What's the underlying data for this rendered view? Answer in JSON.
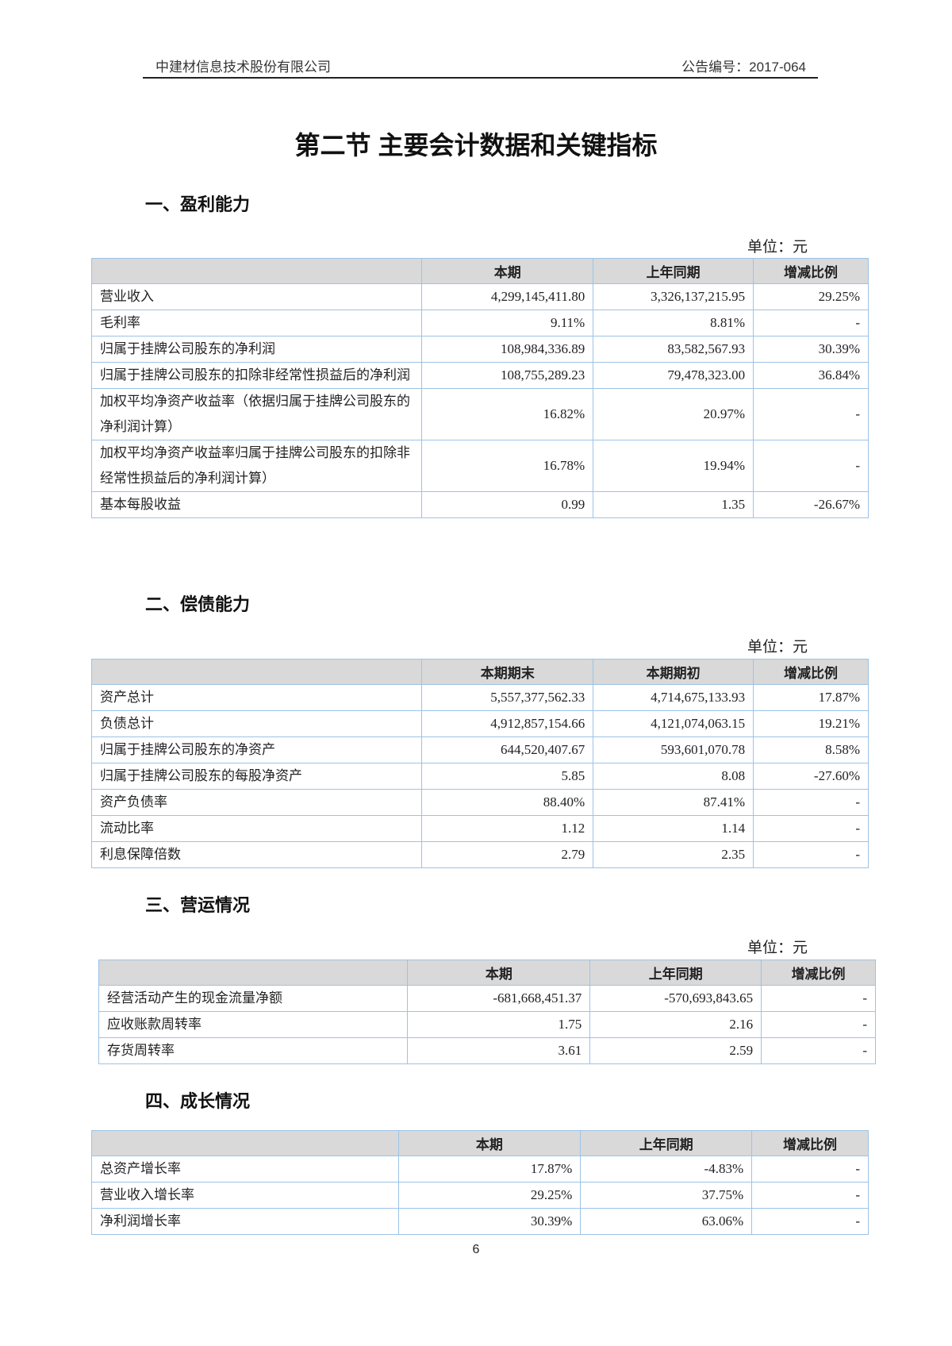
{
  "header": {
    "company": "中建材信息技术股份有限公司",
    "notice_no": "公告编号：2017-064"
  },
  "title": "第二节  主要会计数据和关键指标",
  "sections": [
    {
      "heading": "一、盈利能力",
      "unit": "单位：元",
      "columns": [
        "",
        "本期",
        "上年同期",
        "增减比例"
      ],
      "rows": [
        [
          "营业收入",
          "4,299,145,411.80",
          "3,326,137,215.95",
          "29.25%"
        ],
        [
          "毛利率",
          "9.11%",
          "8.81%",
          "-"
        ],
        [
          "归属于挂牌公司股东的净利润",
          "108,984,336.89",
          "83,582,567.93",
          "30.39%"
        ],
        [
          "归属于挂牌公司股东的扣除非经常性损益后的净利润",
          "108,755,289.23",
          "79,478,323.00",
          "36.84%"
        ],
        [
          "加权平均净资产收益率（依据归属于挂牌公司股东的净利润计算）",
          "16.82%",
          "20.97%",
          "-"
        ],
        [
          "加权平均净资产收益率归属于挂牌公司股东的扣除非经常性损益后的净利润计算）",
          "16.78%",
          "19.94%",
          "-"
        ],
        [
          "基本每股收益",
          "0.99",
          "1.35",
          "-26.67%"
        ]
      ]
    },
    {
      "heading": "二、偿债能力",
      "unit": "单位：元",
      "columns": [
        "",
        "本期期末",
        "本期期初",
        "增减比例"
      ],
      "rows": [
        [
          "资产总计",
          "5,557,377,562.33",
          "4,714,675,133.93",
          "17.87%"
        ],
        [
          "负债总计",
          "4,912,857,154.66",
          "4,121,074,063.15",
          "19.21%"
        ],
        [
          "归属于挂牌公司股东的净资产",
          "644,520,407.67",
          "593,601,070.78",
          "8.58%"
        ],
        [
          "归属于挂牌公司股东的每股净资产",
          "5.85",
          "8.08",
          "-27.60%"
        ],
        [
          "资产负债率",
          "88.40%",
          "87.41%",
          "-"
        ],
        [
          "流动比率",
          "1.12",
          "1.14",
          "-"
        ],
        [
          "利息保障倍数",
          "2.79",
          "2.35",
          "-"
        ]
      ]
    },
    {
      "heading": "三、营运情况",
      "unit": "单位：元",
      "columns": [
        "",
        "本期",
        "上年同期",
        "增减比例"
      ],
      "rows": [
        [
          "经营活动产生的现金流量净额",
          "-681,668,451.37",
          "-570,693,843.65",
          "-"
        ],
        [
          "应收账款周转率",
          "1.75",
          "2.16",
          "-"
        ],
        [
          "存货周转率",
          "3.61",
          "2.59",
          "-"
        ]
      ]
    },
    {
      "heading": "四、成长情况",
      "columns": [
        "",
        "本期",
        "上年同期",
        "增减比例"
      ],
      "rows": [
        [
          "总资产增长率",
          "17.87%",
          "-4.83%",
          "-"
        ],
        [
          "营业收入增长率",
          "29.25%",
          "37.75%",
          "-"
        ],
        [
          "净利润增长率",
          "30.39%",
          "63.06%",
          "-"
        ]
      ]
    }
  ],
  "page_number": "6"
}
